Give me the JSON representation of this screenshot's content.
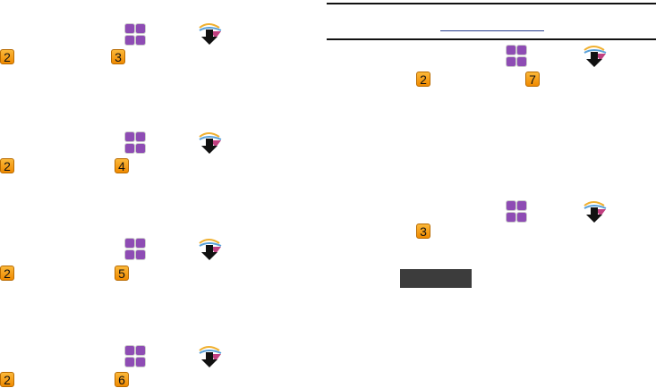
{
  "badges": {
    "b1": "2",
    "b2": "3",
    "b3": "2",
    "b4": "4",
    "b5": "2",
    "b6": "5",
    "b7": "2",
    "b8": "6",
    "b9": "2",
    "b10": "7",
    "b11": "3"
  },
  "colors": {
    "badge": "#f5a01a",
    "grid": "#8e4cb4",
    "link": "#2b3f8f",
    "dark_button": "#3c3c3c"
  },
  "icons": {
    "grid": "apps-grid-icon",
    "download": "download-arrow-icon",
    "number": "number-key-icon"
  }
}
